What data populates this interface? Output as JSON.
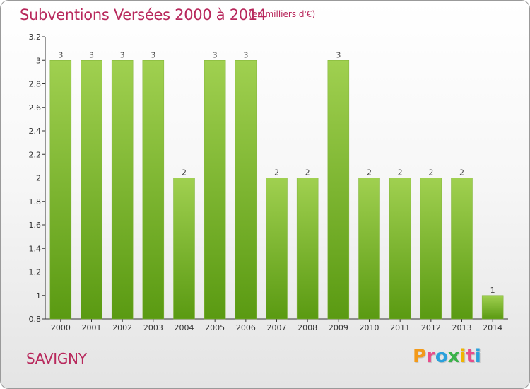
{
  "header": {
    "title": "Subventions Versées 2000 à 2014",
    "units": "(en milliers d'€)"
  },
  "footer": {
    "location": "SAVIGNY",
    "brand": "Proxiti"
  },
  "colors": {
    "bar_light": "#a0d050",
    "bar_dark": "#5a9a12",
    "title": "#b8285c",
    "brand_p": "#f39a1a",
    "brand_r": "#e84c8a",
    "brand_o": "#2aa0dc",
    "brand_x": "#3bb24a",
    "brand_i": "#f0b400",
    "brand_t": "#e84c8a",
    "brand_i2": "#2aa0dc"
  },
  "chart_data": {
    "type": "bar",
    "title": "Subventions Versées 2000 à 2014",
    "xlabel": "",
    "ylabel": "",
    "categories": [
      "2000",
      "2001",
      "2002",
      "2003",
      "2004",
      "2005",
      "2006",
      "2007",
      "2008",
      "2009",
      "2010",
      "2011",
      "2012",
      "2013",
      "2014"
    ],
    "values": [
      3,
      3,
      3,
      3,
      2,
      3,
      3,
      2,
      2,
      3,
      2,
      2,
      2,
      2,
      1
    ],
    "value_labels": [
      "3",
      "3",
      "3",
      "3",
      "2",
      "3",
      "3",
      "2",
      "2",
      "3",
      "2",
      "2",
      "2",
      "2",
      "1"
    ],
    "ylim": [
      0.8,
      3.2
    ],
    "yticks": [
      0.8,
      1,
      1.2,
      1.4,
      1.6,
      1.8,
      2,
      2.2,
      2.4,
      2.6,
      2.8,
      3,
      3.2
    ],
    "ytick_labels": [
      "0.8",
      "1",
      "1.2",
      "1.4",
      "1.6",
      "1.8",
      "2",
      "2.2",
      "2.4",
      "2.6",
      "2.8",
      "3",
      "3.2"
    ],
    "grid": false,
    "legend": "none"
  }
}
